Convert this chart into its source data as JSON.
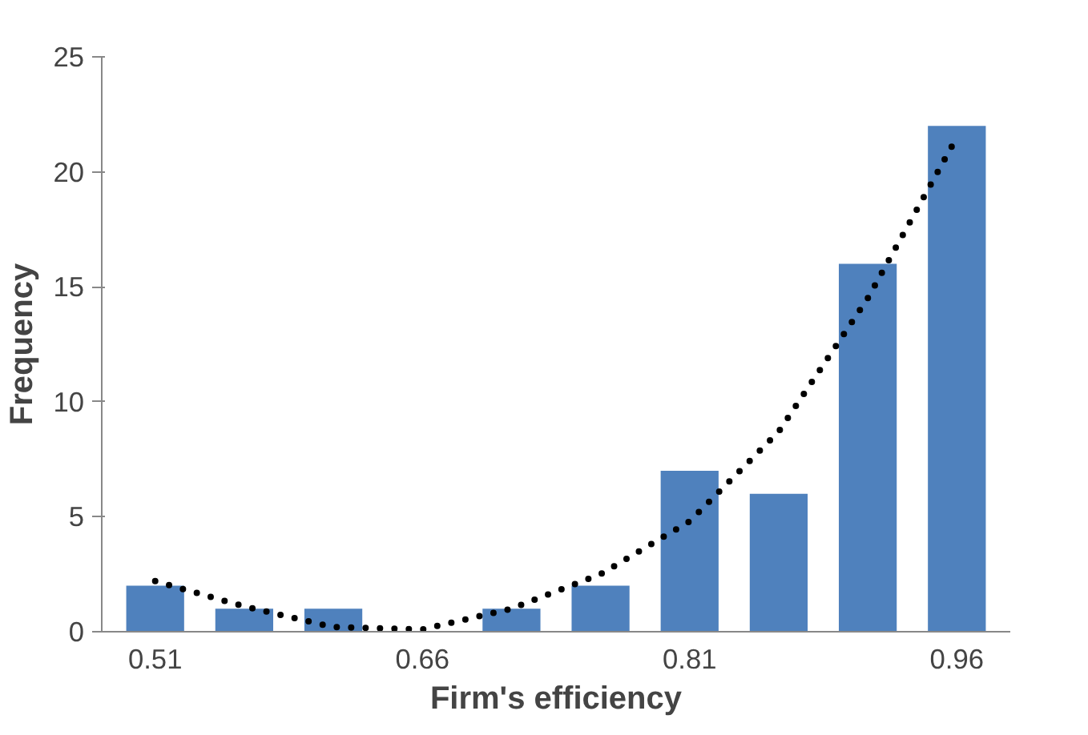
{
  "chart_data": {
    "type": "bar",
    "xlabel": "Firm's efficiency",
    "ylabel": "Frequency",
    "categories": [
      "0.51",
      null,
      null,
      "0.66",
      null,
      null,
      "0.81",
      null,
      null,
      "0.96"
    ],
    "series": [
      {
        "color": "#4f81bd",
        "values": [
          2,
          1,
          1,
          0,
          1,
          2,
          7,
          6,
          16,
          22
        ]
      },
      {
        "type": "line",
        "color": "#000000",
        "line_style": "dotted",
        "values": [
          2.2,
          1.1,
          0.2,
          0.1,
          1.0,
          2.5,
          4.8,
          8.7,
          14.5,
          21.5
        ]
      }
    ],
    "ylim": [
      0,
      25
    ],
    "yticks": [
      0,
      5,
      10,
      15,
      20,
      25
    ],
    "grid": false
  }
}
